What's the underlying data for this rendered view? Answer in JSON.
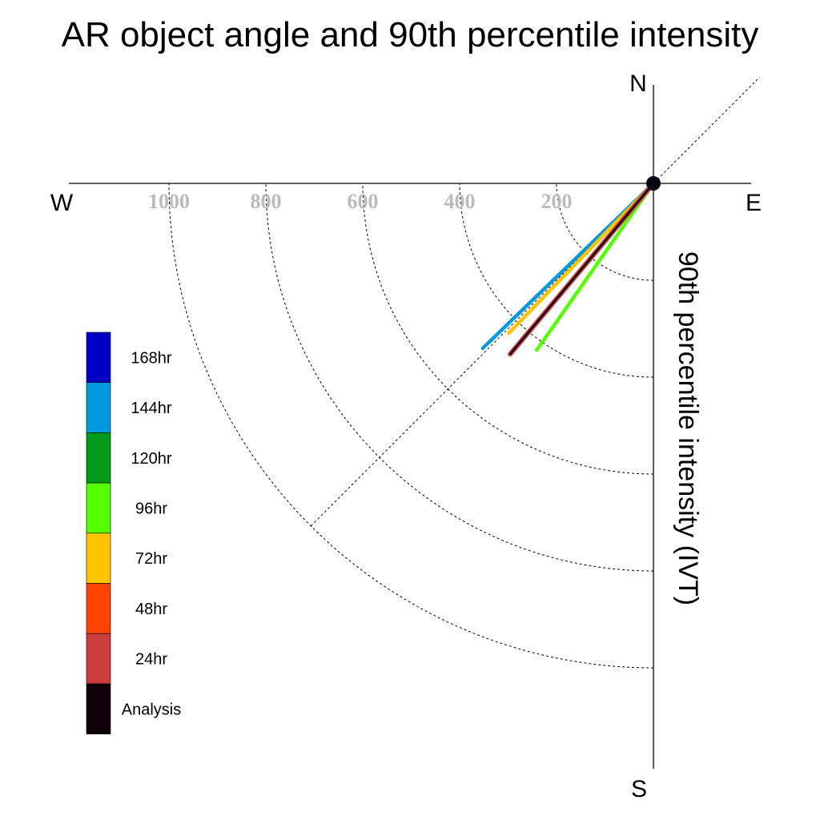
{
  "chart_data": {
    "type": "polar",
    "title": "AR object angle and 90th percentile intensity",
    "ylabel": "90th percentile intensity (IVT)",
    "compass": {
      "north": "N",
      "south": "S",
      "east": "E",
      "west": "W"
    },
    "radial_ticks": [
      200,
      400,
      600,
      800,
      1000
    ],
    "radial_tick_labels": [
      "200",
      "400",
      "600",
      "800",
      "1000"
    ],
    "rlim": [
      0,
      1400
    ],
    "grid": true,
    "reference_line_bearing_deg": 225,
    "origin_marker": "black-dot",
    "legend_position": "left",
    "series": [
      {
        "name": "144hr",
        "color": "#0099dd",
        "bearing": 226,
        "intensity": 490
      },
      {
        "name": "72hr",
        "color": "#ffc300",
        "bearing": 224,
        "intensity": 430
      },
      {
        "name": "120hr",
        "color": "#009918",
        "bearing": 220,
        "intensity": 400
      },
      {
        "name": "96hr",
        "color": "#55ff00",
        "bearing": 215,
        "intensity": 420
      },
      {
        "name": "48hr",
        "color": "#ff4400",
        "bearing": 220,
        "intensity": 460
      },
      {
        "name": "24hr",
        "color": "#cc3d3d",
        "bearing": 220,
        "intensity": 460
      },
      {
        "name": "Analysis",
        "color": "#0d0008",
        "bearing": 220,
        "intensity": 460
      }
    ],
    "legend": [
      {
        "label": "168hr",
        "color": "#0000c4"
      },
      {
        "label": "144hr",
        "color": "#0099dd"
      },
      {
        "label": "120hr",
        "color": "#009918"
      },
      {
        "label": "96hr",
        "color": "#55ff00"
      },
      {
        "label": "72hr",
        "color": "#ffc300"
      },
      {
        "label": "48hr",
        "color": "#ff4400"
      },
      {
        "label": "24hr",
        "color": "#cc3d3d"
      },
      {
        "label": "Analysis",
        "color": "#0d0008"
      }
    ]
  }
}
